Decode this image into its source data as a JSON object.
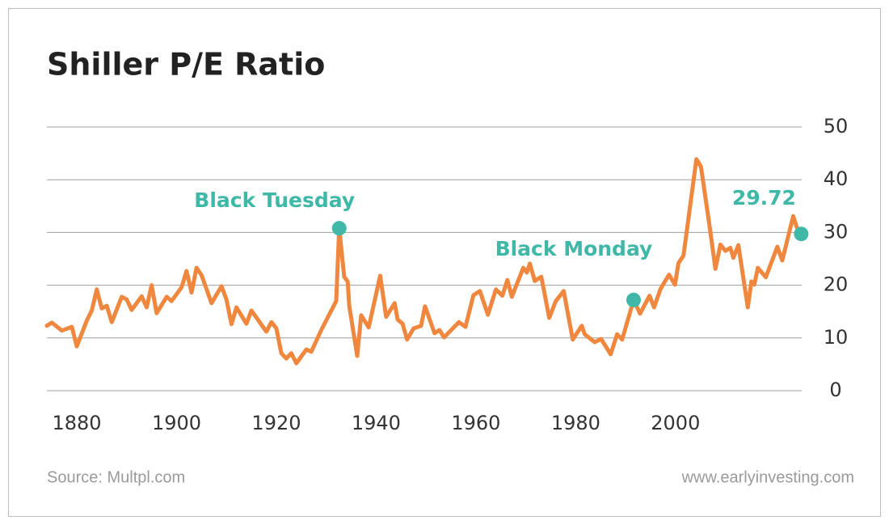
{
  "chart_data": {
    "type": "line",
    "title": "Shiller P/E Ratio",
    "source": "Source: Multpl.com",
    "credit": "www.earlyinvesting.com",
    "xlim": [
      1874,
      2025.3
    ],
    "xticks": [
      1880,
      1900,
      1920,
      1940,
      1960,
      1980,
      2000
    ],
    "ylim": [
      0,
      50
    ],
    "yticks": [
      0,
      10,
      20,
      30,
      40,
      50
    ],
    "grid": true,
    "series": [
      {
        "name": "Shiller P/E",
        "color": "#f0873f",
        "x": [
          1874,
          1875,
          1877,
          1879,
          1880,
          1882,
          1883,
          1884,
          1885,
          1886,
          1887,
          1889,
          1890,
          1891,
          1893,
          1894,
          1895,
          1896,
          1898,
          1899,
          1901,
          1902,
          1903,
          1904,
          1905,
          1907,
          1909,
          1910,
          1911,
          1912,
          1914,
          1915,
          1918,
          1919,
          1920,
          1921,
          1922,
          1923,
          1924,
          1926,
          1927,
          1929,
          1932,
          1932.6,
          1933.6,
          1934.3,
          1934.6,
          1936.2,
          1937,
          1938.5,
          1940.8,
          1942,
          1943.7,
          1944.3,
          1945.3,
          1946.2,
          1947.5,
          1949,
          1949.8,
          1951.7,
          1952.7,
          1953.6,
          1956.6,
          1957.9,
          1959.5,
          1960.8,
          1962.4,
          1964,
          1965.3,
          1966.3,
          1967.2,
          1969.5,
          1970.2,
          1970.8,
          1971.8,
          1973.1,
          1974.7,
          1976,
          1977.6,
          1979.4,
          1981.2,
          1981.8,
          1983.8,
          1985.1,
          1987,
          1988.3,
          1989.3,
          1991.6,
          1992.9,
          1994.8,
          1995.7,
          1997,
          1998.7,
          1999.9,
          2000.6,
          2001.6,
          2004.2,
          2005.1,
          2006.8,
          2008,
          2009,
          2010,
          2011,
          2011.6,
          2012.6,
          2014.5,
          2015.2,
          2015.8,
          2016.5,
          2018.1,
          2020.4,
          2021.4,
          2023.6,
          2024.3,
          2025.2
        ],
        "values": [
          12.3,
          12.9,
          11.4,
          12.1,
          8.4,
          13.3,
          15.2,
          19.2,
          15.6,
          16.1,
          13.0,
          17.8,
          17.3,
          15.3,
          17.9,
          15.8,
          20.0,
          14.7,
          17.8,
          17.0,
          19.6,
          22.7,
          18.6,
          23.3,
          21.9,
          16.6,
          19.8,
          17.3,
          12.6,
          15.8,
          12.7,
          15.2,
          11.2,
          13.0,
          11.8,
          7.1,
          6.1,
          7.1,
          5.2,
          7.8,
          7.4,
          11.5,
          17.0,
          30.8,
          21.6,
          20.7,
          16.1,
          6.6,
          14.3,
          12.0,
          21.8,
          14.0,
          16.6,
          13.5,
          12.7,
          9.7,
          11.8,
          12.3,
          16.0,
          10.9,
          11.5,
          10.1,
          13.0,
          12.1,
          18.1,
          18.9,
          14.4,
          19.2,
          18.0,
          21.0,
          17.8,
          23.3,
          22.4,
          24.1,
          20.8,
          21.6,
          13.8,
          17.0,
          18.9,
          9.7,
          12.3,
          10.7,
          9.2,
          9.8,
          6.9,
          10.7,
          9.7,
          17.2,
          14.6,
          18.0,
          15.8,
          19.3,
          22.0,
          20.1,
          24.2,
          25.6,
          43.9,
          42.5,
          31.4,
          23.1,
          27.7,
          26.5,
          27.1,
          25.2,
          27.6,
          15.8,
          20.7,
          20.1,
          23.3,
          21.5,
          27.3,
          24.7,
          33.1,
          31.0,
          29.72
        ]
      }
    ],
    "annotations": [
      {
        "label": "Black Tuesday",
        "x": 1932.6,
        "y": 30.8,
        "color": "#3fb8a8"
      },
      {
        "label": "Black Monday",
        "x": 1991.6,
        "y": 17.2,
        "color": "#3fb8a8"
      },
      {
        "label": "29.72",
        "x": 2025.2,
        "y": 29.72,
        "color": "#3fb8a8"
      }
    ]
  }
}
